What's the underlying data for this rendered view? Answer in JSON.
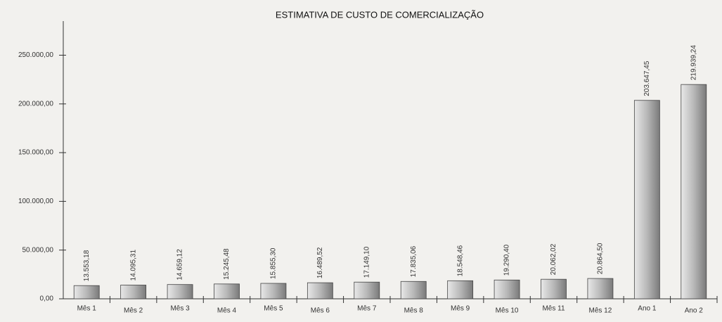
{
  "chart_data": {
    "type": "bar",
    "title": "ESTIMATIVA DE CUSTO DE COMERCIALIZAÇÃO",
    "categories": [
      "Mês 1",
      "Mês 2",
      "Mês 3",
      "Mês 4",
      "Mês 5",
      "Mês 6",
      "Mês 7",
      "Mês 8",
      "Mês 9",
      "Mês 10",
      "Mês 11",
      "Mês 12",
      "Ano 1",
      "Ano 2"
    ],
    "values": [
      13553.18,
      14095.31,
      14659.12,
      15245.48,
      15855.3,
      16489.52,
      17149.1,
      17835.06,
      18548.46,
      19290.4,
      20062.02,
      20864.5,
      203647.45,
      219939.24
    ],
    "value_labels": [
      "13.553,18",
      "14.095,31",
      "14.659,12",
      "15.245,48",
      "15.855,30",
      "16.489,52",
      "17.149,10",
      "17.835,06",
      "18.548,46",
      "19.290,40",
      "20.062,02",
      "20.864,50",
      "203.647,45",
      "219.939,24"
    ],
    "color": "#a8a8a8",
    "ylim": [
      0,
      285000
    ],
    "yticks": [
      {
        "value": 0,
        "label": "0,00"
      },
      {
        "value": 50000,
        "label": "50.000,00"
      },
      {
        "value": 100000,
        "label": "100.000,00"
      },
      {
        "value": 150000,
        "label": "150.000,00"
      },
      {
        "value": 200000,
        "label": "200.000,00"
      },
      {
        "value": 250000,
        "label": "250.000,00"
      }
    ]
  }
}
